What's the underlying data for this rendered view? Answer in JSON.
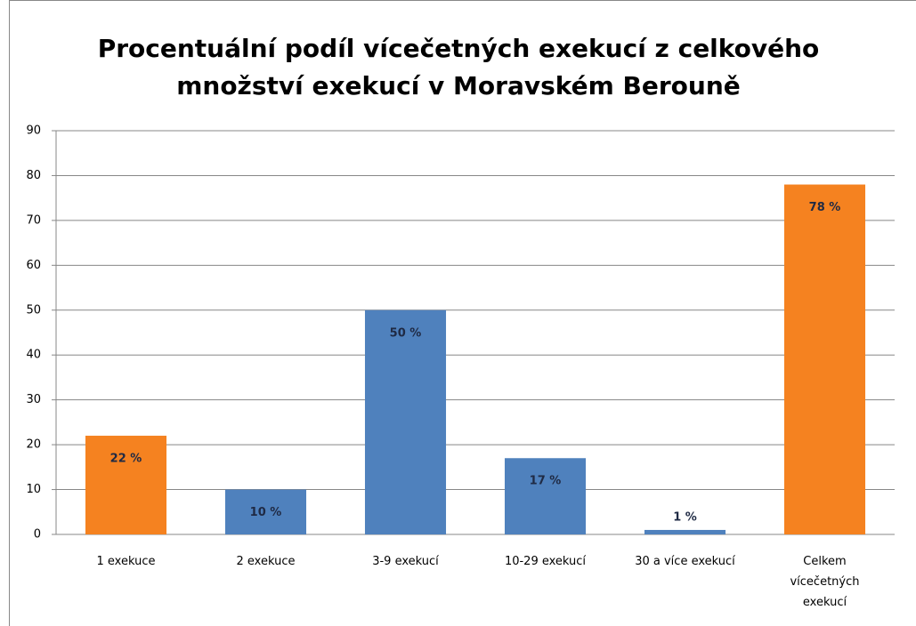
{
  "chart_data": {
    "type": "bar",
    "title": "Procentuální podíl vícečetných exekucí z celkového množství exekucí v Moravském Berouně",
    "categories": [
      "1 exekuce",
      "2 exekuce",
      "3-9 exekucí",
      "10-29 exekucí",
      "30 a více exekucí",
      "Celkem vícečetných exekucí"
    ],
    "values": [
      22,
      10,
      50,
      17,
      1,
      78
    ],
    "value_labels": [
      "22 %",
      "10 %",
      "50 %",
      "17 %",
      "1 %",
      "78 %"
    ],
    "colors": [
      "#f58220",
      "#4f81bd",
      "#4f81bd",
      "#4f81bd",
      "#4f81bd",
      "#f58220"
    ],
    "ylim": [
      0,
      90
    ],
    "yticks": [
      0,
      10,
      20,
      30,
      40,
      50,
      60,
      70,
      80,
      90
    ],
    "grid": true
  }
}
